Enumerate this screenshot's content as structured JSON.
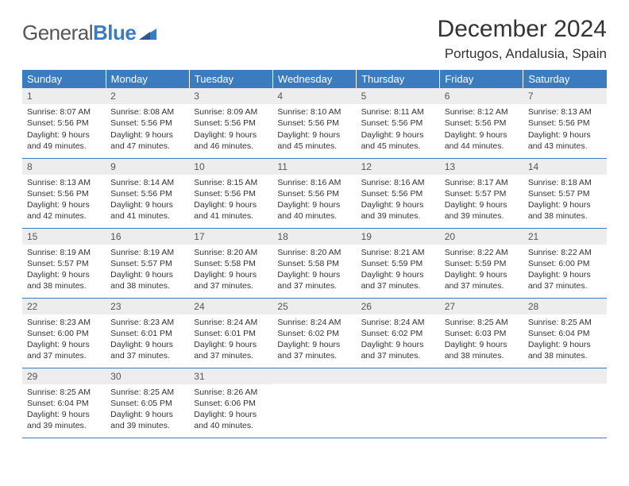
{
  "brand": {
    "part1": "General",
    "part2": "Blue"
  },
  "title": "December 2024",
  "location": "Portugos, Andalusia, Spain",
  "colors": {
    "accent": "#3b7bbf",
    "header_bg": "#3b7bbf",
    "daynum_bg": "#ededed",
    "text": "#333333"
  },
  "day_headers": [
    "Sunday",
    "Monday",
    "Tuesday",
    "Wednesday",
    "Thursday",
    "Friday",
    "Saturday"
  ],
  "weeks": [
    [
      {
        "n": "1",
        "sr": "8:07 AM",
        "ss": "5:56 PM",
        "dh": "9",
        "dm": "49"
      },
      {
        "n": "2",
        "sr": "8:08 AM",
        "ss": "5:56 PM",
        "dh": "9",
        "dm": "47"
      },
      {
        "n": "3",
        "sr": "8:09 AM",
        "ss": "5:56 PM",
        "dh": "9",
        "dm": "46"
      },
      {
        "n": "4",
        "sr": "8:10 AM",
        "ss": "5:56 PM",
        "dh": "9",
        "dm": "45"
      },
      {
        "n": "5",
        "sr": "8:11 AM",
        "ss": "5:56 PM",
        "dh": "9",
        "dm": "45"
      },
      {
        "n": "6",
        "sr": "8:12 AM",
        "ss": "5:56 PM",
        "dh": "9",
        "dm": "44"
      },
      {
        "n": "7",
        "sr": "8:13 AM",
        "ss": "5:56 PM",
        "dh": "9",
        "dm": "43"
      }
    ],
    [
      {
        "n": "8",
        "sr": "8:13 AM",
        "ss": "5:56 PM",
        "dh": "9",
        "dm": "42"
      },
      {
        "n": "9",
        "sr": "8:14 AM",
        "ss": "5:56 PM",
        "dh": "9",
        "dm": "41"
      },
      {
        "n": "10",
        "sr": "8:15 AM",
        "ss": "5:56 PM",
        "dh": "9",
        "dm": "41"
      },
      {
        "n": "11",
        "sr": "8:16 AM",
        "ss": "5:56 PM",
        "dh": "9",
        "dm": "40"
      },
      {
        "n": "12",
        "sr": "8:16 AM",
        "ss": "5:56 PM",
        "dh": "9",
        "dm": "39"
      },
      {
        "n": "13",
        "sr": "8:17 AM",
        "ss": "5:57 PM",
        "dh": "9",
        "dm": "39"
      },
      {
        "n": "14",
        "sr": "8:18 AM",
        "ss": "5:57 PM",
        "dh": "9",
        "dm": "38"
      }
    ],
    [
      {
        "n": "15",
        "sr": "8:19 AM",
        "ss": "5:57 PM",
        "dh": "9",
        "dm": "38"
      },
      {
        "n": "16",
        "sr": "8:19 AM",
        "ss": "5:57 PM",
        "dh": "9",
        "dm": "38"
      },
      {
        "n": "17",
        "sr": "8:20 AM",
        "ss": "5:58 PM",
        "dh": "9",
        "dm": "37"
      },
      {
        "n": "18",
        "sr": "8:20 AM",
        "ss": "5:58 PM",
        "dh": "9",
        "dm": "37"
      },
      {
        "n": "19",
        "sr": "8:21 AM",
        "ss": "5:59 PM",
        "dh": "9",
        "dm": "37"
      },
      {
        "n": "20",
        "sr": "8:22 AM",
        "ss": "5:59 PM",
        "dh": "9",
        "dm": "37"
      },
      {
        "n": "21",
        "sr": "8:22 AM",
        "ss": "6:00 PM",
        "dh": "9",
        "dm": "37"
      }
    ],
    [
      {
        "n": "22",
        "sr": "8:23 AM",
        "ss": "6:00 PM",
        "dh": "9",
        "dm": "37"
      },
      {
        "n": "23",
        "sr": "8:23 AM",
        "ss": "6:01 PM",
        "dh": "9",
        "dm": "37"
      },
      {
        "n": "24",
        "sr": "8:24 AM",
        "ss": "6:01 PM",
        "dh": "9",
        "dm": "37"
      },
      {
        "n": "25",
        "sr": "8:24 AM",
        "ss": "6:02 PM",
        "dh": "9",
        "dm": "37"
      },
      {
        "n": "26",
        "sr": "8:24 AM",
        "ss": "6:02 PM",
        "dh": "9",
        "dm": "37"
      },
      {
        "n": "27",
        "sr": "8:25 AM",
        "ss": "6:03 PM",
        "dh": "9",
        "dm": "38"
      },
      {
        "n": "28",
        "sr": "8:25 AM",
        "ss": "6:04 PM",
        "dh": "9",
        "dm": "38"
      }
    ],
    [
      {
        "n": "29",
        "sr": "8:25 AM",
        "ss": "6:04 PM",
        "dh": "9",
        "dm": "39"
      },
      {
        "n": "30",
        "sr": "8:25 AM",
        "ss": "6:05 PM",
        "dh": "9",
        "dm": "39"
      },
      {
        "n": "31",
        "sr": "8:26 AM",
        "ss": "6:06 PM",
        "dh": "9",
        "dm": "40"
      },
      null,
      null,
      null,
      null
    ]
  ],
  "labels": {
    "sunrise": "Sunrise:",
    "sunset": "Sunset:",
    "daylight": "Daylight:",
    "hours": "hours",
    "and": "and",
    "minutes": "minutes."
  }
}
